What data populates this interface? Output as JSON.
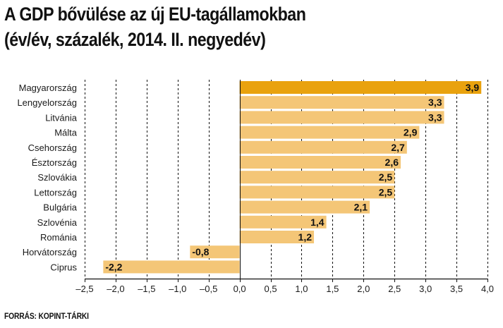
{
  "header": {
    "title_line1": "A GDP bővülése az új EU-tagállamokban",
    "title_line2": "(év/év, százalék, 2014. II. negyedév)"
  },
  "footer": {
    "source": "FORRÁS: KOPINT-TÁRKI"
  },
  "colors": {
    "highlight_bar": "#e9a20e",
    "bar": "#f4c677",
    "grid": "#111111"
  },
  "chart_data": {
    "type": "bar",
    "orientation": "horizontal",
    "title": "A GDP bővülése az új EU-tagállamokban",
    "subtitle": "(év/év, százalék, 2014. II. negyedév)",
    "xlabel": "",
    "ylabel": "",
    "categories": [
      "Magyarország",
      "Lengyelország",
      "Litvánia",
      "Málta",
      "Csehország",
      "Észtország",
      "Szlovákia",
      "Lettország",
      "Bulgária",
      "Szlovénia",
      "Románia",
      "Horvátország",
      "Ciprus"
    ],
    "values": [
      3.9,
      3.3,
      3.3,
      2.9,
      2.7,
      2.6,
      2.5,
      2.5,
      2.1,
      1.4,
      1.2,
      -0.8,
      -2.2
    ],
    "value_labels": [
      "3,9",
      "3,3",
      "3,3",
      "2,9",
      "2,7",
      "2,6",
      "2,5",
      "2,5",
      "2,1",
      "1,4",
      "1,2",
      "-0,8",
      "-2,2"
    ],
    "highlight_category": "Magyarország",
    "xlim": [
      -2.5,
      4.0
    ],
    "xticks": [
      -2.5,
      -2.0,
      -1.5,
      -1.0,
      -0.5,
      0.0,
      0.5,
      1.0,
      1.5,
      2.0,
      2.5,
      3.0,
      3.5,
      4.0
    ],
    "xtick_labels": [
      "–2,5",
      "–2,0",
      "–1,5",
      "–1,0",
      "–0,5",
      "0,0",
      "0,5",
      "1,0",
      "1,5",
      "2,0",
      "2,5",
      "3,0",
      "3,5",
      "4,0"
    ],
    "grid": "vertical dashed"
  }
}
